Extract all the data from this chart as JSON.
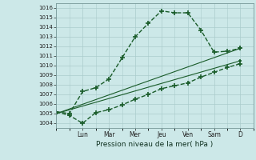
{
  "title": "",
  "xlabel": "Pression niveau de la mer( hPa )",
  "bg_color": "#cce8e8",
  "grid_color": "#aacccc",
  "line_color": "#1a5c2a",
  "ylim": [
    1003.5,
    1016.5
  ],
  "yticks": [
    1004,
    1005,
    1006,
    1007,
    1008,
    1009,
    1010,
    1011,
    1012,
    1013,
    1014,
    1015,
    1016
  ],
  "x_day_labels": [
    "Lun",
    "Mar",
    "Mer",
    "Jeu",
    "Ven",
    "Sam",
    "D"
  ],
  "x_day_positions": [
    2,
    4,
    6,
    8,
    10,
    12,
    14
  ],
  "xlim": [
    0,
    15
  ],
  "series": [
    {
      "x": [
        0,
        1,
        2,
        3,
        4,
        5,
        6,
        7,
        8,
        9,
        10,
        11,
        12,
        13,
        14
      ],
      "y": [
        1005.2,
        1005.0,
        1007.3,
        1007.7,
        1008.6,
        1010.8,
        1013.0,
        1014.4,
        1015.7,
        1015.5,
        1015.5,
        1013.7,
        1011.4,
        1011.5,
        1011.8
      ],
      "marker": "+",
      "markersize": 4,
      "linewidth": 1.0,
      "linestyle": "--"
    },
    {
      "x": [
        0,
        1,
        2,
        3,
        4,
        5,
        6,
        7,
        8,
        9,
        10,
        11,
        12,
        13,
        14
      ],
      "y": [
        1005.2,
        1004.8,
        1004.0,
        1005.1,
        1005.4,
        1005.9,
        1006.5,
        1007.0,
        1007.6,
        1007.9,
        1008.2,
        1008.8,
        1009.3,
        1009.8,
        1010.2
      ],
      "marker": "+",
      "markersize": 4,
      "linewidth": 1.0,
      "linestyle": "--"
    },
    {
      "x": [
        0,
        14
      ],
      "y": [
        1005.0,
        1010.5
      ],
      "marker": "+",
      "markersize": 3,
      "linewidth": 0.8,
      "linestyle": "-"
    },
    {
      "x": [
        0,
        14
      ],
      "y": [
        1005.0,
        1011.8
      ],
      "marker": "+",
      "markersize": 3,
      "linewidth": 0.8,
      "linestyle": "-"
    }
  ]
}
